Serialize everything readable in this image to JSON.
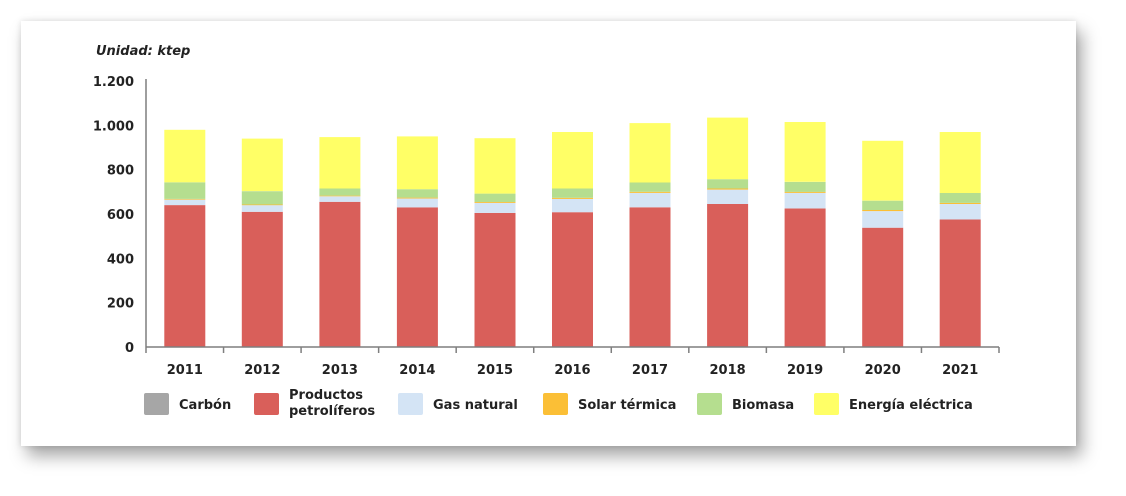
{
  "chart_data": {
    "type": "bar",
    "stacked": true,
    "unit_label": "Unidad: ktep",
    "categories": [
      "2011",
      "2012",
      "2013",
      "2014",
      "2015",
      "2016",
      "2017",
      "2018",
      "2019",
      "2020",
      "2021"
    ],
    "ylim": [
      0,
      1200
    ],
    "y_ticks": [
      {
        "value": 0,
        "label": "0"
      },
      {
        "value": 200,
        "label": "200"
      },
      {
        "value": 400,
        "label": "400"
      },
      {
        "value": 600,
        "label": "600"
      },
      {
        "value": 800,
        "label": "800"
      },
      {
        "value": 1000,
        "label": "1.000"
      },
      {
        "value": 1200,
        "label": "1.200"
      }
    ],
    "series": [
      {
        "name": "Carbón",
        "legend_lines": [
          "Carbón"
        ],
        "color": "#a6a6a6",
        "values": [
          0,
          0,
          0,
          0,
          0,
          0,
          0,
          0,
          0,
          0,
          0
        ]
      },
      {
        "name": "Productos petrolíferos",
        "legend_lines": [
          "Productos",
          "petrolíferos"
        ],
        "color": "#d95f5a",
        "values": [
          640,
          610,
          655,
          630,
          605,
          608,
          630,
          645,
          625,
          538,
          575
        ]
      },
      {
        "name": "Gas natural",
        "legend_lines": [
          "Gas natural"
        ],
        "color": "#d4e4f5",
        "values": [
          25,
          30,
          25,
          40,
          45,
          60,
          65,
          65,
          70,
          75,
          70
        ]
      },
      {
        "name": "Solar térmica",
        "legend_lines": [
          "Solar térmica"
        ],
        "color": "#fbbf36",
        "values": [
          3,
          3,
          3,
          4,
          4,
          5,
          5,
          5,
          5,
          5,
          5
        ]
      },
      {
        "name": "Biomasa",
        "legend_lines": [
          "Biomasa"
        ],
        "color": "#b5de8f",
        "values": [
          75,
          60,
          32,
          38,
          38,
          42,
          42,
          42,
          45,
          42,
          45
        ]
      },
      {
        "name": "Energía eléctrica",
        "legend_lines": [
          "Energía eléctrica"
        ],
        "color": "#ffff66",
        "values": [
          237,
          237,
          232,
          238,
          250,
          255,
          268,
          278,
          270,
          270,
          275
        ]
      }
    ],
    "xlabel": "",
    "ylabel": "",
    "legend_position": "bottom"
  }
}
